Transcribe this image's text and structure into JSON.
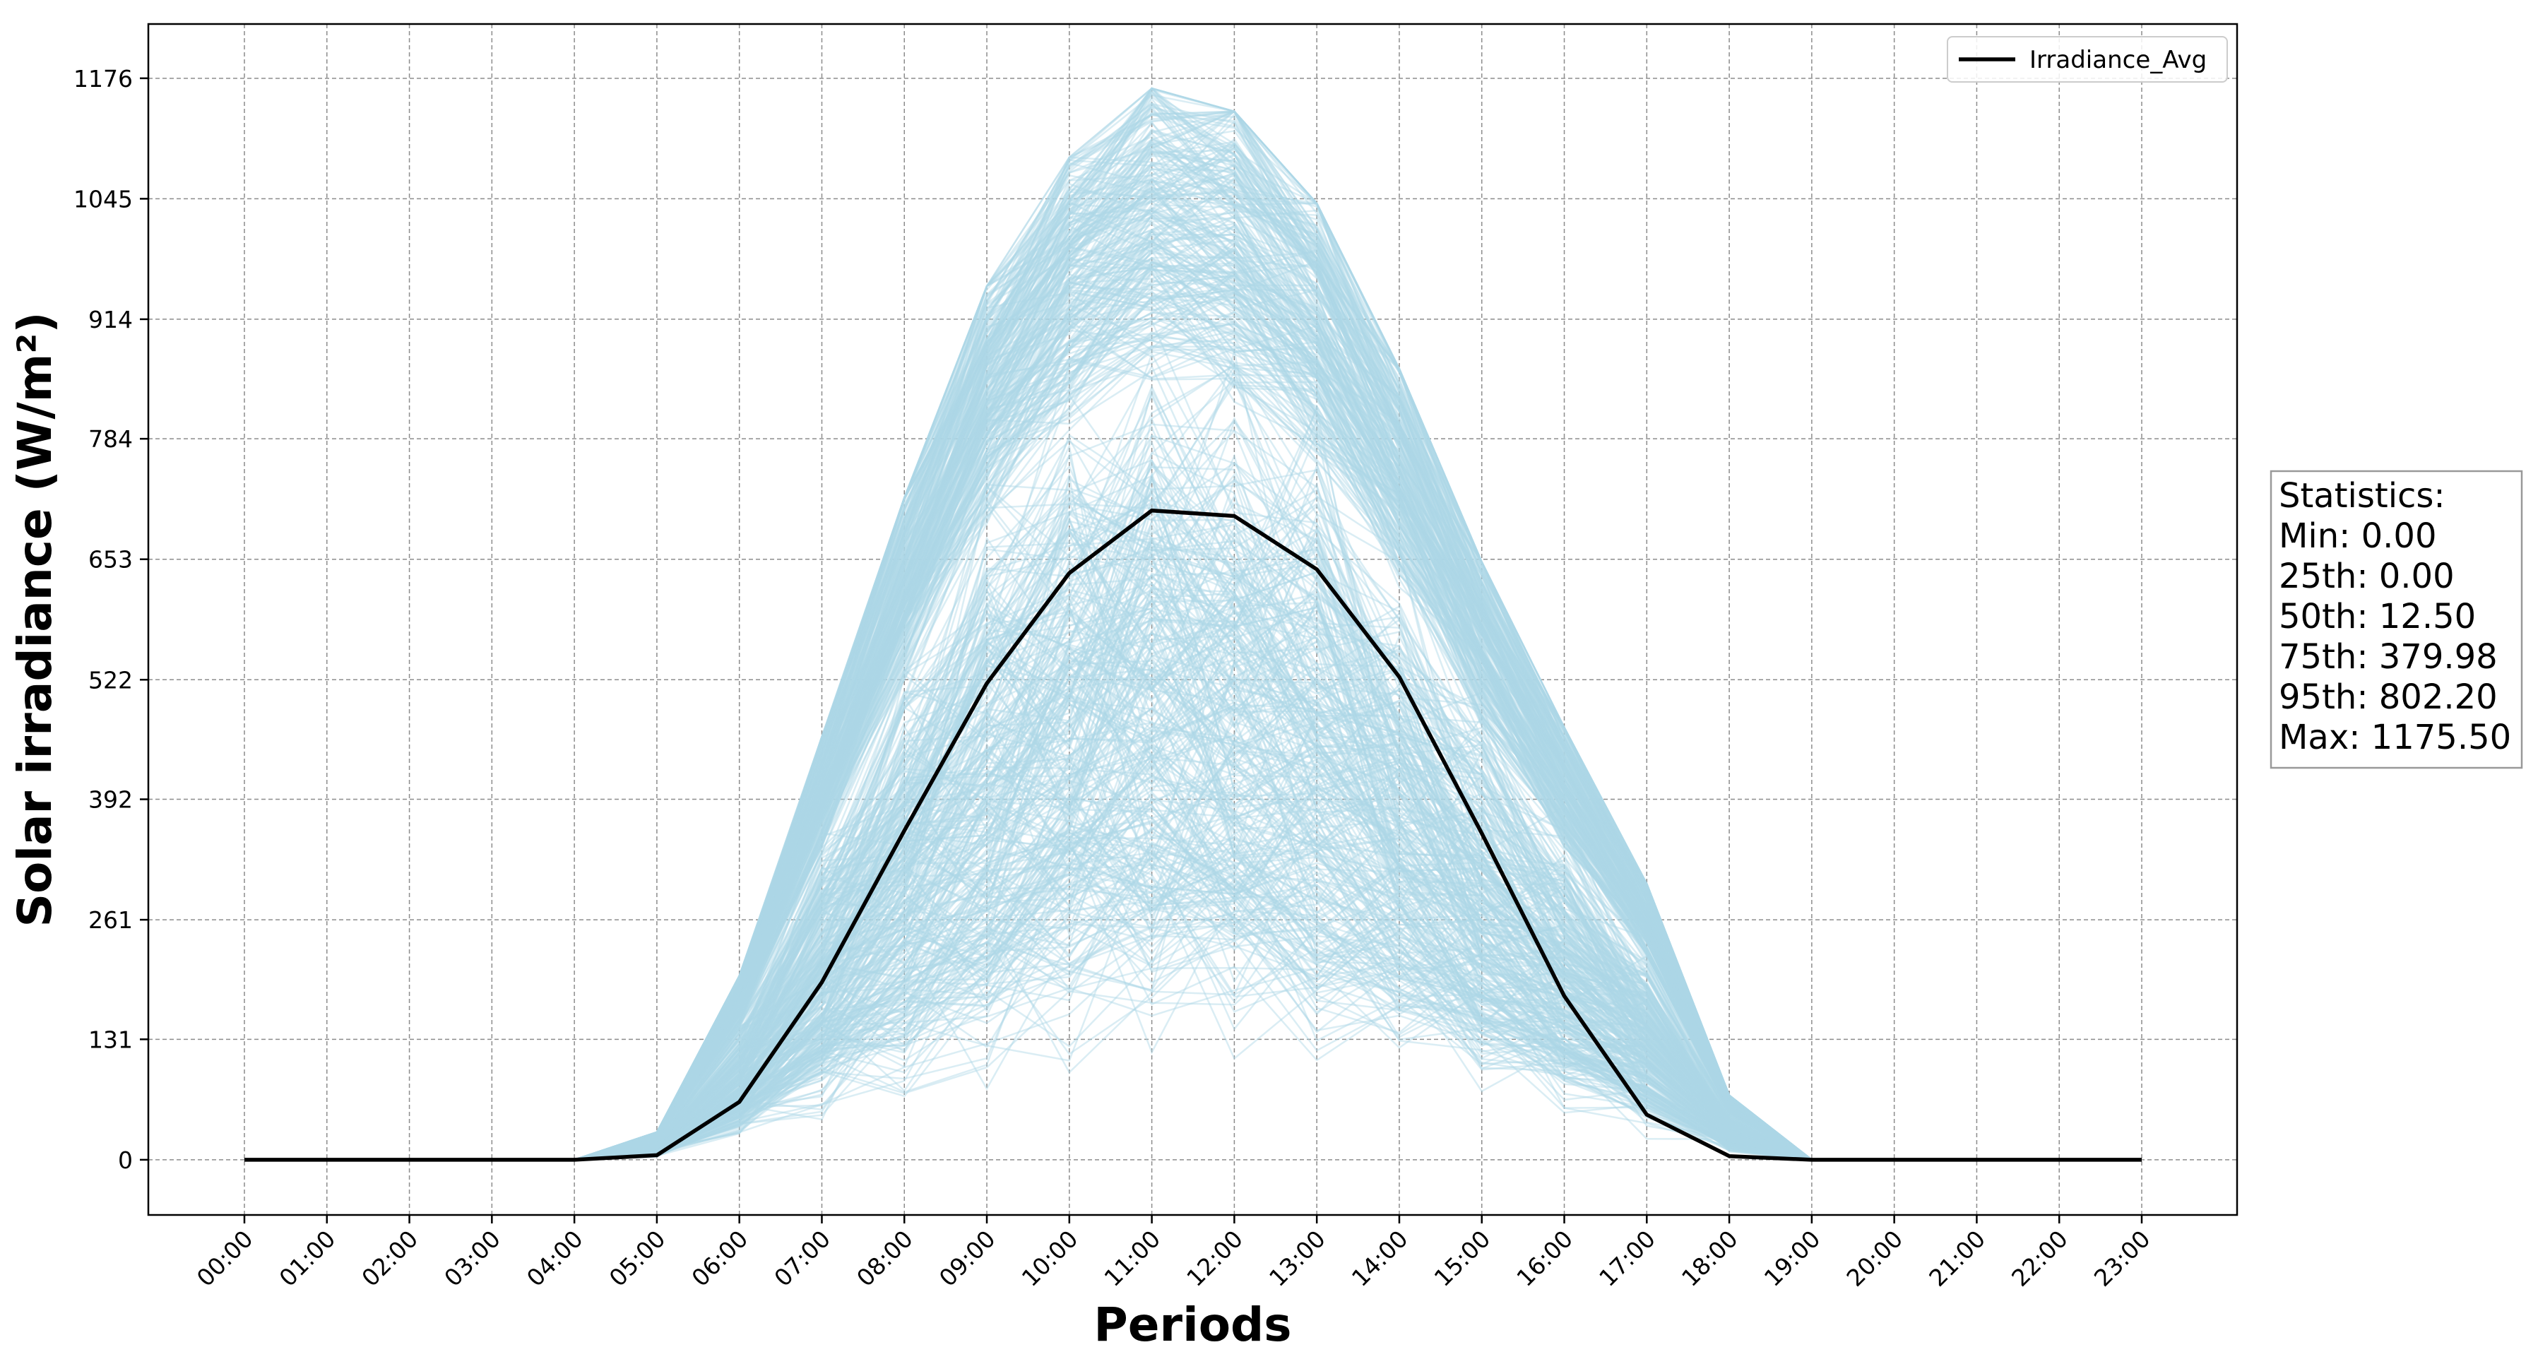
{
  "chart_data": {
    "type": "line",
    "xlabel": "Periods",
    "ylabel": "Solar irradiance (W/m²)",
    "x": [
      "00:00",
      "01:00",
      "02:00",
      "03:00",
      "04:00",
      "05:00",
      "06:00",
      "07:00",
      "08:00",
      "09:00",
      "10:00",
      "11:00",
      "12:00",
      "13:00",
      "14:00",
      "15:00",
      "16:00",
      "17:00",
      "18:00",
      "19:00",
      "20:00",
      "21:00",
      "22:00",
      "23:00"
    ],
    "y_ticks": [
      0,
      131,
      261,
      392,
      522,
      653,
      784,
      914,
      1045,
      1176
    ],
    "ylim": [
      -60,
      1235
    ],
    "grid": true,
    "grid_style": "dashed",
    "legend_placement": "top-right",
    "series": [
      {
        "name": "Irradiance_Avg",
        "color": "#000000",
        "values": [
          0,
          0,
          0,
          0,
          0,
          5,
          63,
          193,
          358,
          518,
          638,
          706,
          700,
          642,
          525,
          355,
          178,
          49,
          4,
          0,
          0,
          0,
          0,
          0
        ]
      }
    ],
    "background_profiles": {
      "color": "#add8e6",
      "description_count": 600,
      "envelope_max": [
        0,
        0,
        0,
        0,
        0,
        30,
        200,
        460,
        720,
        950,
        1090,
        1165,
        1140,
        1040,
        860,
        650,
        470,
        300,
        70,
        0,
        0,
        0,
        0,
        0
      ]
    },
    "statistics": {
      "title": "Statistics:",
      "lines": [
        "Min: 0.00",
        "25th: 0.00",
        "50th: 12.50",
        "75th: 379.98",
        "95th: 802.20",
        "Max: 1175.50"
      ]
    }
  }
}
